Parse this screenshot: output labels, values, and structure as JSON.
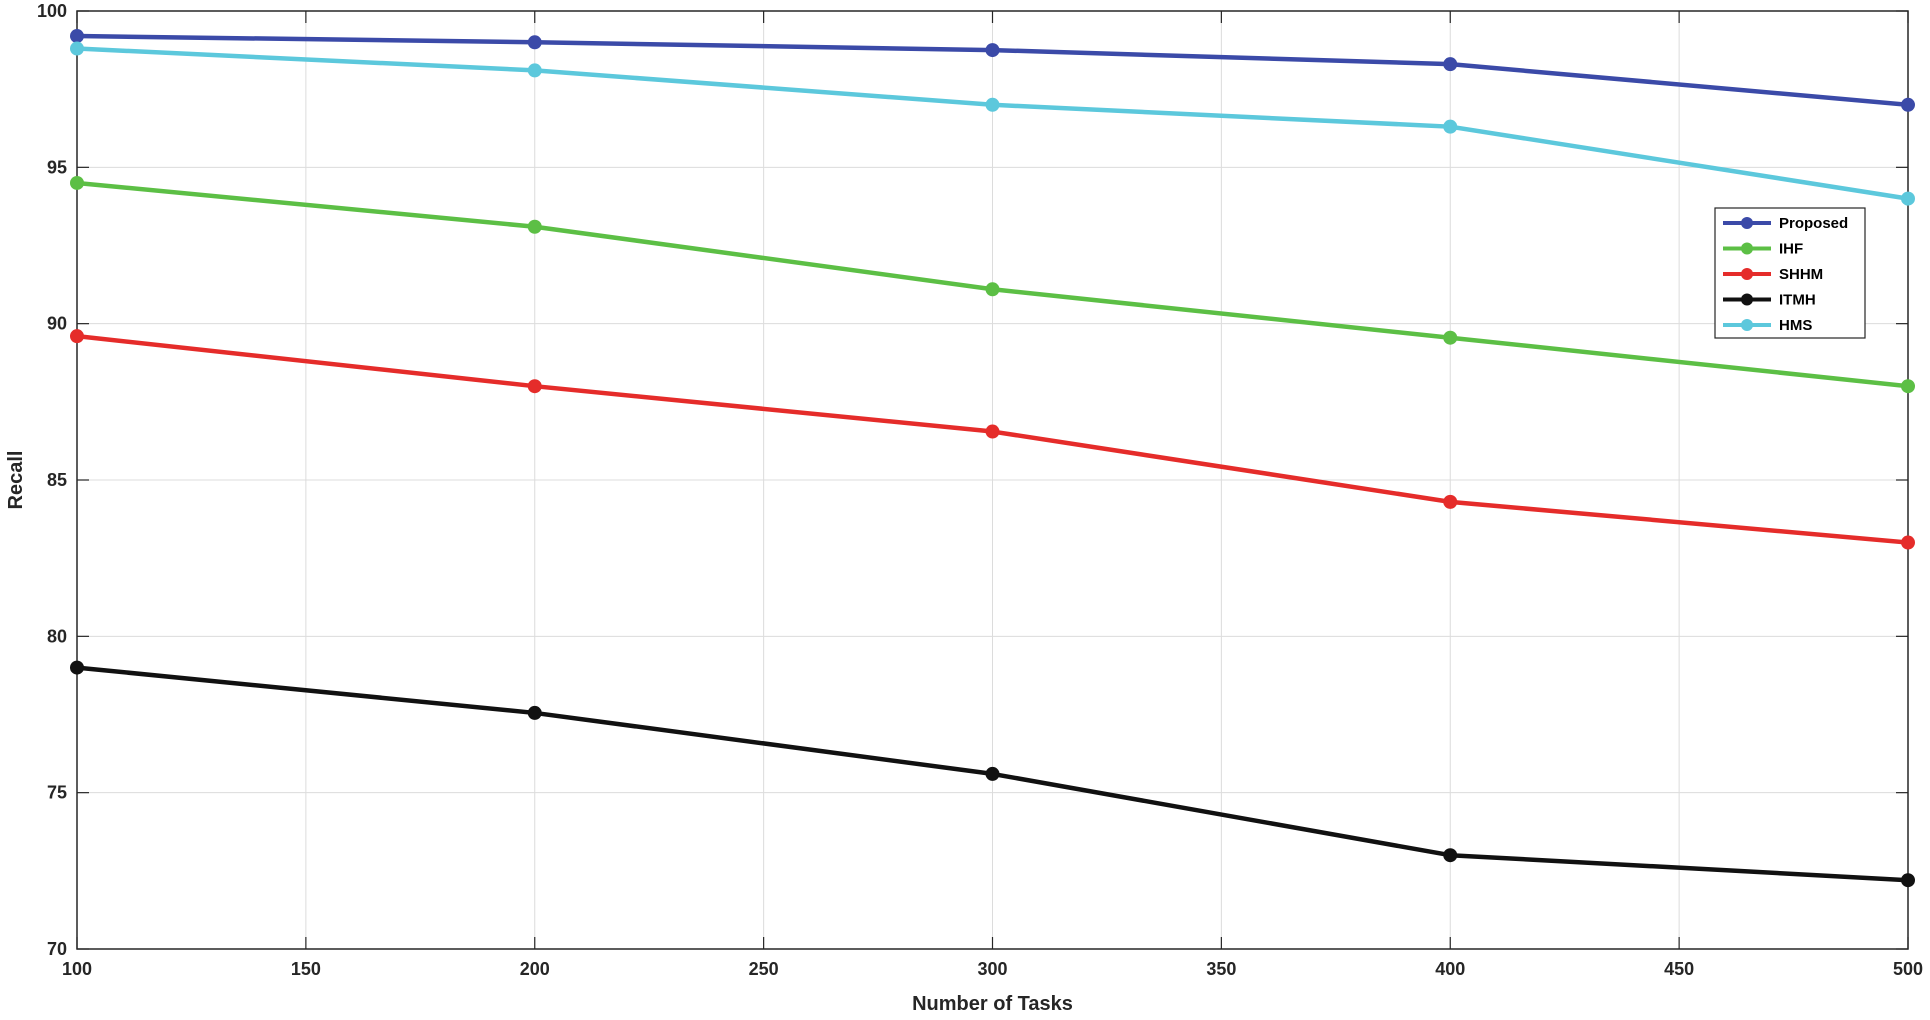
{
  "chart_data": {
    "type": "line",
    "title": "",
    "xlabel": "Number of Tasks",
    "ylabel": "Recall",
    "xlim": [
      100,
      500
    ],
    "ylim": [
      70,
      100
    ],
    "xticks": [
      100,
      150,
      200,
      250,
      300,
      350,
      400,
      450,
      500
    ],
    "yticks": [
      70,
      75,
      80,
      85,
      90,
      95,
      100
    ],
    "grid": true,
    "legend_position": "right",
    "x": [
      100,
      200,
      300,
      400,
      500
    ],
    "series": [
      {
        "name": "Proposed",
        "color": "#3b4aa8",
        "values": [
          99.2,
          99.0,
          98.75,
          98.3,
          97.0
        ]
      },
      {
        "name": "IHF",
        "color": "#5cbf45",
        "values": [
          94.5,
          93.1,
          91.1,
          89.55,
          88.0
        ]
      },
      {
        "name": "SHHM",
        "color": "#e52c2a",
        "values": [
          89.6,
          88.0,
          86.55,
          84.3,
          83.0
        ]
      },
      {
        "name": "ITMH",
        "color": "#111111",
        "values": [
          79.0,
          77.55,
          75.6,
          73.0,
          72.2
        ]
      },
      {
        "name": "HMS",
        "color": "#5cc8dc",
        "values": [
          98.8,
          98.1,
          97.0,
          96.3,
          94.0
        ]
      }
    ]
  }
}
